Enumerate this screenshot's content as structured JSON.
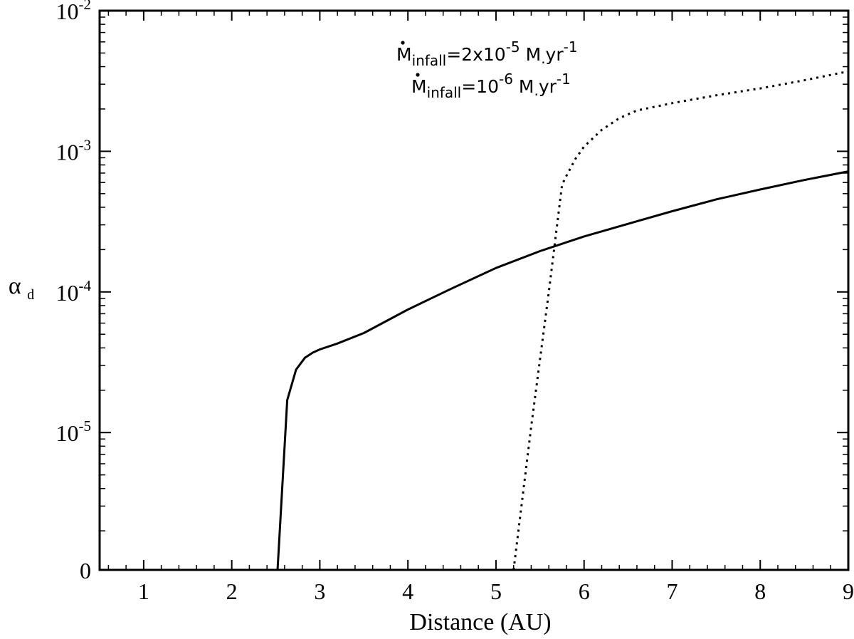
{
  "chart_data": {
    "type": "line",
    "xlabel": "Distance (AU)",
    "ylabel": {
      "base": "α",
      "sub": "d"
    },
    "xlim": [
      0.5,
      9
    ],
    "y_scale": "log with zero at the bottom",
    "ylim": [
      0,
      0.01
    ],
    "x_ticks": [
      1,
      2,
      3,
      4,
      5,
      6,
      7,
      8,
      9
    ],
    "x_tick_labels": [
      "1",
      "2",
      "3",
      "4",
      "5",
      "6",
      "7",
      "8",
      "9"
    ],
    "y_ticks": [
      {
        "value": 0,
        "base": "0",
        "exp": ""
      },
      {
        "value": 1e-05,
        "base": "10",
        "exp": "-5"
      },
      {
        "value": 0.0001,
        "base": "10",
        "exp": "-4"
      },
      {
        "value": 0.001,
        "base": "10",
        "exp": "-3"
      },
      {
        "value": 0.01,
        "base": "10",
        "exp": "-2"
      }
    ],
    "grid": false,
    "legend": {
      "placement": "top-center",
      "entries": [
        {
          "prefix": "M",
          "sub": "infall",
          "mid": "=2x10",
          "exp": "-5",
          "unit": " M",
          "unit_sub": ".",
          "after": "yr",
          "after_exp": "-1"
        },
        {
          "prefix": "M",
          "sub": "infall",
          "mid": "=10",
          "exp": "-6",
          "unit": " M",
          "unit_sub": ".",
          "after": "yr",
          "after_exp": "-1"
        }
      ]
    },
    "series": [
      {
        "style": "solid",
        "color": "#000000",
        "points": [
          [
            2.52,
            0
          ],
          [
            2.63,
            1.7e-05
          ],
          [
            2.73,
            2.8e-05
          ],
          [
            2.83,
            3.4e-05
          ],
          [
            2.92,
            3.7e-05
          ],
          [
            3.0,
            3.9e-05
          ],
          [
            3.2,
            4.3e-05
          ],
          [
            3.5,
            5.1e-05
          ],
          [
            4.0,
            7.5e-05
          ],
          [
            4.5,
            0.000106
          ],
          [
            5.0,
            0.000148
          ],
          [
            5.5,
            0.000195
          ],
          [
            6.0,
            0.000248
          ],
          [
            6.5,
            0.000305
          ],
          [
            7.0,
            0.000375
          ],
          [
            7.5,
            0.000455
          ],
          [
            8.0,
            0.000535
          ],
          [
            8.5,
            0.000625
          ],
          [
            9.0,
            0.00072
          ]
        ]
      },
      {
        "style": "dotted",
        "color": "#000000",
        "points": [
          [
            5.2,
            0
          ],
          [
            5.4,
            1.1e-05
          ],
          [
            5.6,
            0.0001
          ],
          [
            5.75,
            0.00058
          ],
          [
            5.8,
            0.00067
          ],
          [
            5.9,
            0.00088
          ],
          [
            6.0,
            0.00108
          ],
          [
            6.2,
            0.00142
          ],
          [
            6.4,
            0.00172
          ],
          [
            6.6,
            0.00195
          ],
          [
            7.0,
            0.0022
          ],
          [
            7.5,
            0.0025
          ],
          [
            8.0,
            0.0028
          ],
          [
            8.5,
            0.0032
          ],
          [
            9.0,
            0.0037
          ]
        ]
      }
    ]
  }
}
